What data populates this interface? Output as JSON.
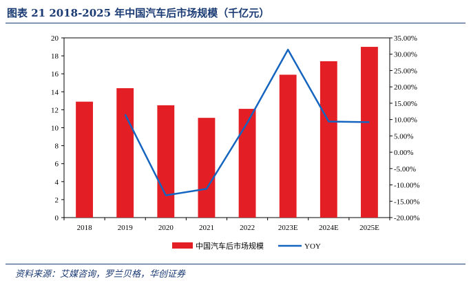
{
  "title": "图表 21    2018-2025 年中国汽车后市场规模（千亿元）",
  "source": "资料来源：艾媒咨询，罗兰贝格，华创证券",
  "colors": {
    "bar": "#e31e24",
    "line": "#1565c0",
    "title": "#1a3a73"
  },
  "chart_data": {
    "type": "bar",
    "categories": [
      "2018",
      "2019",
      "2020",
      "2021",
      "2022",
      "2023E",
      "2024E",
      "2025E"
    ],
    "series": [
      {
        "name": "中国汽车后市场规模",
        "type": "bar",
        "axis": "left",
        "values": [
          12.9,
          14.4,
          12.5,
          11.1,
          12.1,
          15.9,
          17.4,
          19.0
        ]
      },
      {
        "name": "YOY",
        "type": "line",
        "axis": "right",
        "values": [
          null,
          11.6,
          -13.2,
          -11.2,
          9.0,
          31.4,
          9.4,
          9.2
        ]
      }
    ],
    "y_left": {
      "min": 0,
      "max": 20,
      "step": 2,
      "ticks": [
        "0",
        "2",
        "4",
        "6",
        "8",
        "10",
        "12",
        "14",
        "16",
        "18",
        "20"
      ]
    },
    "y_right": {
      "min": -20,
      "max": 35,
      "step": 5,
      "ticks": [
        "-20.00%",
        "-15.00%",
        "-10.00%",
        "-5.00%",
        "0.00%",
        "5.00%",
        "10.00%",
        "15.00%",
        "20.00%",
        "25.00%",
        "30.00%",
        "35.00%"
      ]
    },
    "legend": [
      "中国汽车后市场规模",
      "YOY"
    ],
    "legend_position": "bottom",
    "grid": false
  }
}
